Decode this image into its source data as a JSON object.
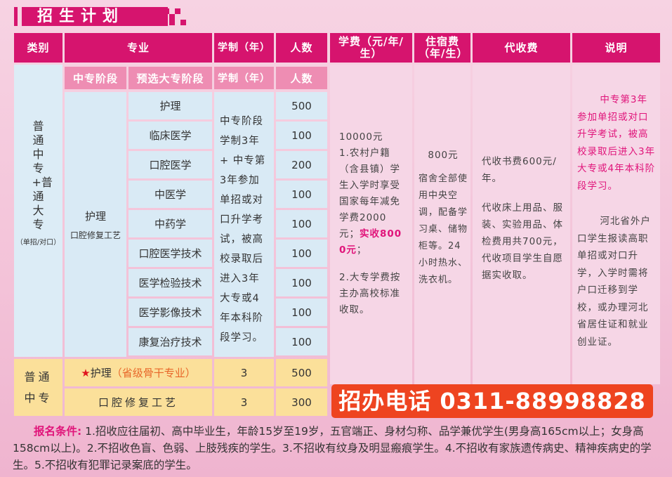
{
  "title": "招生计划",
  "headers": {
    "category": "类别",
    "major": "专业",
    "years": "学制（年）",
    "count": "人数",
    "tuition": "学费（元/年/生）",
    "dorm": "住宿费（年/生）",
    "collect": "代收费",
    "notes": "说明"
  },
  "subheaders": {
    "stage1": "中专阶段",
    "stage2": "预选大专阶段",
    "years": "学制（年）",
    "count": "人数"
  },
  "group1": {
    "category": "普通中专+普通大专",
    "category_note": "（单招/对口）",
    "stage1_major": "护理",
    "stage1_major2": "口腔修复工艺",
    "years_text": "中专阶段学制3年 + 中专第3年参加单招或对口升学考试，被高校录取后进入3年大专或4年本科阶段学习。",
    "rows": [
      {
        "major": "护理",
        "count": "500"
      },
      {
        "major": "临床医学",
        "count": "100"
      },
      {
        "major": "口腔医学",
        "count": "200"
      },
      {
        "major": "中医学",
        "count": "100"
      },
      {
        "major": "中药学",
        "count": "100"
      },
      {
        "major": "口腔医学技术",
        "count": "100"
      },
      {
        "major": "医学检验技术",
        "count": "100"
      },
      {
        "major": "医学影像技术",
        "count": "100"
      },
      {
        "major": "康复治疗技术",
        "count": "100"
      }
    ]
  },
  "group2": {
    "category": "普通中专",
    "rows": [
      {
        "major": "护理",
        "major_tag": "（省级骨干专业）",
        "years": "3",
        "count": "500"
      },
      {
        "major": "口腔修复工艺",
        "years": "3",
        "count": "300"
      }
    ]
  },
  "tuition": {
    "amount": "10000元",
    "p1": "1.农村户籍（含县镇）学生入学时享受国家每年减免学费2000元；",
    "p1_highlight": "实收8000元",
    "p1_end": "；",
    "p2": "2.大专学费按主办高校标准收取。"
  },
  "dorm": {
    "amount": "800元",
    "desc": "宿舍全部使用中央空调，配备学习桌、储物柜等。24小时热水、洗衣机。"
  },
  "collect": {
    "p1": "代收书费600元/年。",
    "p2": "代收床上用品、服装、实验用品、体检费用共700元，代收项目学生自愿据实收取。"
  },
  "notes": {
    "p1": "中专第3年参加单招或对口升学考试，被高校录取后进入3年大专或4年本科阶段学习。",
    "p2": "河北省外户口学生报读高职单招或对口升学，入学时需将户口迁移到学校，或办理河北省居住证和就业创业证。"
  },
  "phone": "招办电话 0311-88998828",
  "requirements": {
    "label": "报名条件:",
    "text": "1.招收应往届初、高中毕业生，年龄15岁至19岁，五官端正、身材匀称、品学兼优学生(男身高165cm以上；女身高158cm以上)。2.不招收色盲、色弱、上肢残疾的学生。3.不招收有纹身及明显瘢痕学生。4.不招收有家族遗传病史、精神疾病史的学生。5.不招收有犯罪记录案底的学生。"
  },
  "colors": {
    "header": "#d6146e",
    "subheader": "#ee8db3",
    "blue": "#d9eaf5",
    "yellow": "#fbe09a",
    "phone": "#ee4420",
    "highlight": "#e0147a"
  }
}
